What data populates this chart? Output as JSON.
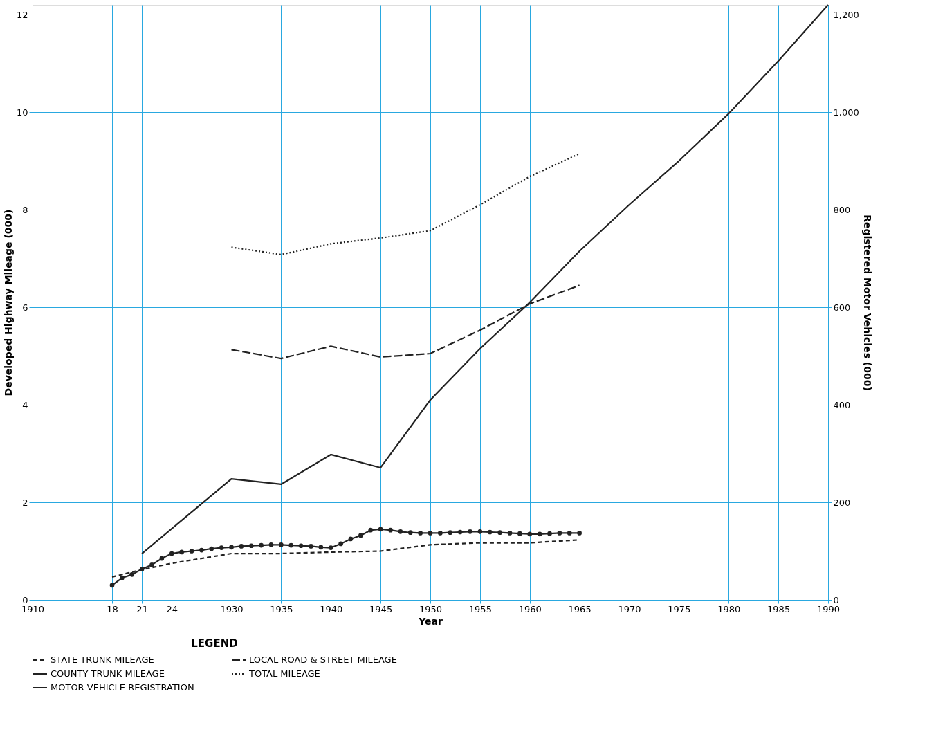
{
  "chart_data": {
    "type": "line",
    "xlabel": "Year",
    "ylabel": "Developed Highway Mileage (000)",
    "y2label": "Registered Motor Vehicles (000)",
    "legend_title": "LEGEND",
    "legend": "bottom",
    "grid": true,
    "xlim": [
      1910,
      1990
    ],
    "xticks": [
      1910,
      {
        "value": 1918,
        "label": "18"
      },
      {
        "value": 1921,
        "label": "21"
      },
      {
        "value": 1924,
        "label": "24"
      },
      1930,
      1935,
      1940,
      1945,
      1950,
      1955,
      1960,
      1965,
      1970,
      1975,
      1980,
      1985,
      1990
    ],
    "ylim": [
      0,
      12.2
    ],
    "yticks": [
      0,
      2,
      4,
      6,
      8,
      10,
      12
    ],
    "y2lim": [
      0,
      1220
    ],
    "y2ticks": [
      0,
      200,
      400,
      600,
      800,
      {
        "value": 1000,
        "label": "1,000"
      },
      {
        "value": 1200,
        "label": "1,200"
      }
    ],
    "series": [
      {
        "name": "STATE TRUNK MILEAGE",
        "color": "#222222",
        "line_style": "dashed",
        "x": [
          1918,
          1921,
          1924,
          1930,
          1935,
          1940,
          1945,
          1950,
          1955,
          1960,
          1965
        ],
        "values": [
          0.47,
          0.62,
          0.75,
          0.95,
          0.95,
          0.98,
          1.0,
          1.13,
          1.17,
          1.17,
          1.23
        ]
      },
      {
        "name": "LOCAL ROAD & STREET MILEAGE",
        "color": "#222222",
        "line_style": "dashed",
        "x": [
          1930,
          1935,
          1940,
          1945,
          1950,
          1955,
          1960,
          1965
        ],
        "values": [
          5.13,
          4.95,
          5.2,
          4.98,
          5.05,
          5.53,
          6.07,
          6.45
        ]
      },
      {
        "name": "COUNTY TRUNK MILEAGE",
        "color": "#222222",
        "line_style": "solid",
        "marker": "circle",
        "x": [
          1918,
          1919,
          1920,
          1921,
          1922,
          1923,
          1924,
          1925,
          1926,
          1927,
          1928,
          1929,
          1930,
          1931,
          1932,
          1933,
          1934,
          1935,
          1936,
          1937,
          1938,
          1939,
          1940,
          1941,
          1942,
          1943,
          1944,
          1945,
          1946,
          1947,
          1948,
          1949,
          1950,
          1951,
          1952,
          1953,
          1954,
          1955,
          1956,
          1957,
          1958,
          1959,
          1960,
          1961,
          1962,
          1963,
          1964,
          1965
        ],
        "values": [
          0.3,
          0.45,
          0.52,
          0.63,
          0.72,
          0.85,
          0.95,
          0.98,
          1.0,
          1.02,
          1.05,
          1.07,
          1.08,
          1.1,
          1.11,
          1.12,
          1.13,
          1.13,
          1.12,
          1.11,
          1.1,
          1.08,
          1.07,
          1.15,
          1.25,
          1.32,
          1.43,
          1.45,
          1.43,
          1.4,
          1.38,
          1.37,
          1.37,
          1.37,
          1.38,
          1.39,
          1.4,
          1.4,
          1.39,
          1.38,
          1.37,
          1.36,
          1.35,
          1.35,
          1.36,
          1.37,
          1.37,
          1.37
        ]
      },
      {
        "name": "TOTAL MILEAGE",
        "color": "#222222",
        "line_style": "dotted",
        "x": [
          1930,
          1935,
          1940,
          1945,
          1950,
          1955,
          1960,
          1965
        ],
        "values": [
          7.23,
          7.08,
          7.3,
          7.42,
          7.57,
          8.1,
          8.68,
          9.15
        ]
      },
      {
        "name": "MOTOR VEHICLE REGISTRATION",
        "color": "#222222",
        "line_style": "solid",
        "axis": "y2",
        "x": [
          1921,
          1930,
          1935,
          1940,
          1945,
          1950,
          1955,
          1960,
          1965,
          1970,
          1975,
          1980,
          1985,
          1990
        ],
        "values": [
          95,
          248,
          237,
          298,
          271,
          410,
          515,
          610,
          715,
          810,
          900,
          997,
          1105,
          1220
        ]
      }
    ]
  }
}
